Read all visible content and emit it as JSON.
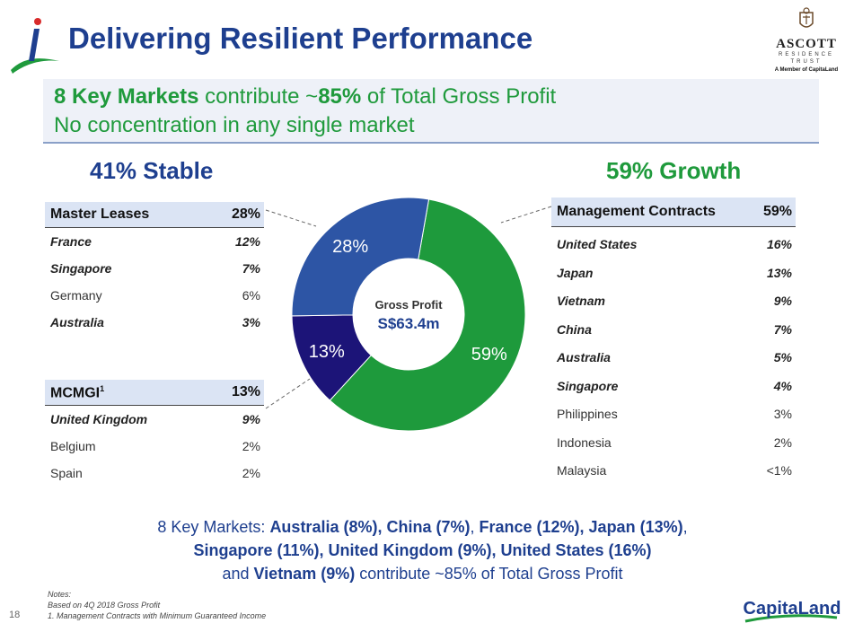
{
  "title": "Delivering Resilient Performance",
  "brand": {
    "ascott_name": "ASCOTT",
    "ascott_sub1": "RESIDENCE",
    "ascott_sub2": "TRUST",
    "member_text": "A Member of CapitaLand",
    "capitaland": "CapitaLand"
  },
  "banner": {
    "line1_bold": "8 Key Markets",
    "line1_mid": " contribute ~",
    "line1_pct": "85%",
    "line1_end": " of Total Gross Profit",
    "line2": "No concentration in any single market"
  },
  "stable_heading": "41% Stable",
  "growth_heading": "59% Growth",
  "master_leases": {
    "header_label": "Master Leases",
    "header_value": "28%",
    "rows": [
      {
        "label": "France",
        "value": "12%",
        "key": true
      },
      {
        "label": "Singapore",
        "value": "7%",
        "key": true
      },
      {
        "label": "Germany",
        "value": "6%",
        "key": false
      },
      {
        "label": "Australia",
        "value": "3%",
        "key": true
      }
    ]
  },
  "mcmgi": {
    "header_label": "MCMGI",
    "header_sup": "1",
    "header_value": "13%",
    "rows": [
      {
        "label": "United Kingdom",
        "value": "9%",
        "key": true
      },
      {
        "label": "Belgium",
        "value": "2%",
        "key": false
      },
      {
        "label": "Spain",
        "value": "2%",
        "key": false
      }
    ]
  },
  "management_contracts": {
    "header_label": "Management Contracts",
    "header_value": "59%",
    "rows": [
      {
        "label": "United States",
        "value": "16%",
        "key": true
      },
      {
        "label": "Japan",
        "value": "13%",
        "key": true
      },
      {
        "label": "Vietnam",
        "value": "9%",
        "key": true
      },
      {
        "label": "China",
        "value": "7%",
        "key": true
      },
      {
        "label": "Australia",
        "value": "5%",
        "key": true
      },
      {
        "label": "Singapore",
        "value": "4%",
        "key": true
      },
      {
        "label": "Philippines",
        "value": "3%",
        "key": false
      },
      {
        "label": "Indonesia",
        "value": "2%",
        "key": false
      },
      {
        "label": "Malaysia",
        "value": "<1%",
        "key": false
      }
    ]
  },
  "chart_data": {
    "type": "pie",
    "donut": true,
    "center_label": "Gross Profit",
    "center_value": "S$63.4m",
    "slices": [
      {
        "label": "59%",
        "value": 59,
        "color": "#1e9a3c"
      },
      {
        "label": "13%",
        "value": 13,
        "color": "#1c1478"
      },
      {
        "label": "28%",
        "value": 28,
        "color": "#2d55a5"
      }
    ]
  },
  "summary": {
    "l1_a": "8 Key Markets: ",
    "l1_b": "Australia (8%), China (7%)",
    "l1_c": ", ",
    "l1_d": "France (12%), Japan (13%)",
    "l1_e": ",",
    "l2_a": "Singapore (11%), United Kingdom (9%), United States (16%)",
    "l3_a": "and ",
    "l3_b": "Vietnam (9%)",
    "l3_c": " contribute ~85% of Total Gross Profit"
  },
  "notes": {
    "heading": "Notes:",
    "line1": "Based on 4Q 2018 Gross Profit",
    "line2": "1.    Management Contracts with Minimum Guaranteed Income"
  },
  "page_number": "18",
  "colors": {
    "blue": "#1e3f8f",
    "green": "#1f9a3c"
  }
}
